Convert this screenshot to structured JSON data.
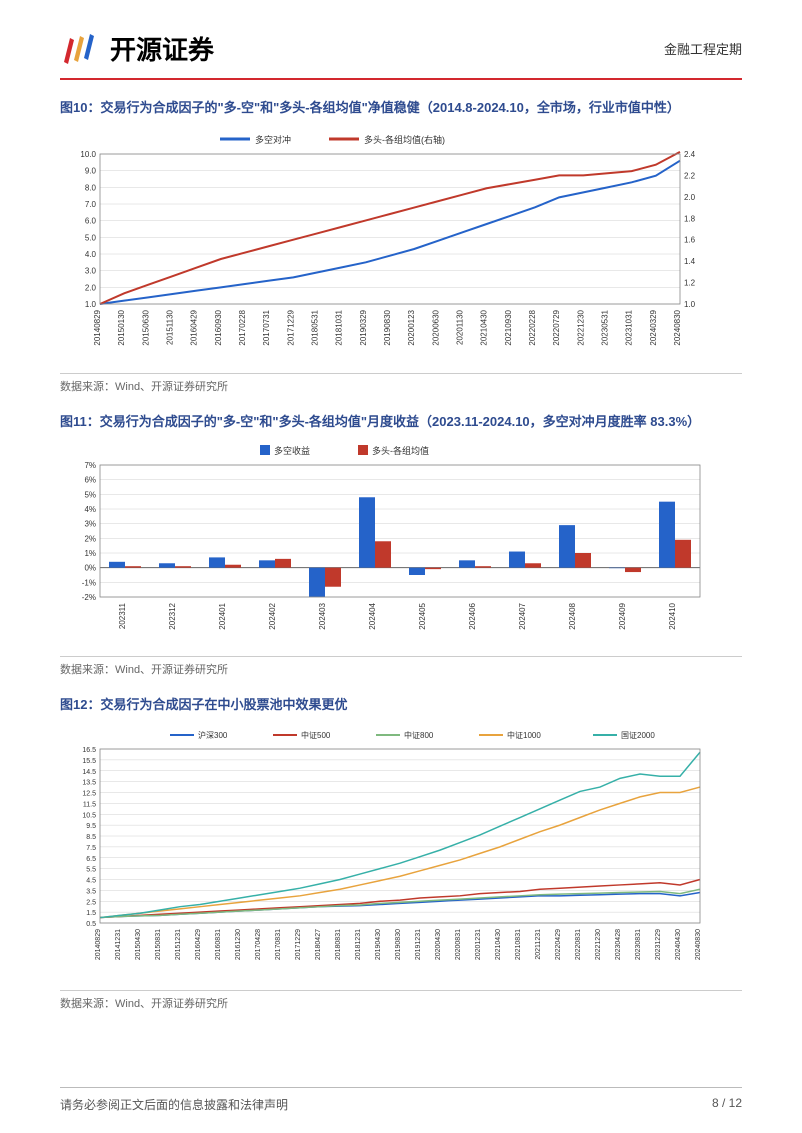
{
  "header": {
    "company": "开源证券",
    "category": "金融工程定期"
  },
  "figure10": {
    "title": "图10：交易行为合成因子的\"多-空\"和\"多头-各组均值\"净值稳健（2014.8-2024.10，全市场，行业市值中性）",
    "source": "数据来源：Wind、开源证券研究所",
    "type": "line",
    "x_labels": [
      "20140829",
      "20150130",
      "20150630",
      "20151130",
      "20160429",
      "20160930",
      "20170228",
      "20170731",
      "20171229",
      "20180531",
      "20181031",
      "20190329",
      "20190830",
      "20200123",
      "20200630",
      "20201130",
      "20210430",
      "20210930",
      "20220228",
      "20220729",
      "20221230",
      "20230531",
      "20231031",
      "20240329",
      "20240830"
    ],
    "y1_lim": [
      1.0,
      10.0
    ],
    "y1_step": 1.0,
    "y2_lim": [
      1.0,
      2.4
    ],
    "y2_step": 0.2,
    "series": [
      {
        "name": "多空对冲",
        "color": "#2563c9",
        "axis": "left",
        "values": [
          1.0,
          1.2,
          1.4,
          1.6,
          1.8,
          2.0,
          2.2,
          2.4,
          2.6,
          2.9,
          3.2,
          3.5,
          3.9,
          4.3,
          4.8,
          5.3,
          5.8,
          6.3,
          6.8,
          7.4,
          7.7,
          8.0,
          8.3,
          8.7,
          9.6
        ]
      },
      {
        "name": "多头-各组均值(右轴)",
        "color": "#c0392b",
        "axis": "right",
        "values": [
          1.0,
          1.1,
          1.18,
          1.26,
          1.34,
          1.42,
          1.48,
          1.54,
          1.6,
          1.66,
          1.72,
          1.78,
          1.84,
          1.9,
          1.96,
          2.02,
          2.08,
          2.12,
          2.16,
          2.2,
          2.2,
          2.22,
          2.24,
          2.3,
          2.42
        ]
      }
    ],
    "grid_color": "#d0d0d0",
    "background_color": "#ffffff",
    "label_fontsize": 9,
    "tick_fontsize": 8
  },
  "figure11": {
    "title": "图11：交易行为合成因子的\"多-空\"和\"多头-各组均值\"月度收益（2023.11-2024.10，多空对冲月度胜率 83.3%）",
    "source": "数据来源：Wind、开源证券研究所",
    "type": "bar",
    "x_labels": [
      "202311",
      "202312",
      "202401",
      "202402",
      "202403",
      "202404",
      "202405",
      "202406",
      "202407",
      "202408",
      "202409",
      "202410"
    ],
    "y_lim": [
      -2,
      7
    ],
    "y_step": 1,
    "y_format": "percent",
    "series": [
      {
        "name": "多空收益",
        "color": "#2563c9",
        "values": [
          0.4,
          0.3,
          0.7,
          0.5,
          -2.0,
          4.8,
          -0.5,
          0.5,
          1.1,
          2.9,
          0.0,
          4.5
        ]
      },
      {
        "name": "多头-各组均值",
        "color": "#c0392b",
        "values": [
          0.1,
          0.1,
          0.2,
          0.6,
          -1.3,
          1.8,
          -0.1,
          0.1,
          0.3,
          1.0,
          -0.3,
          1.9
        ]
      }
    ],
    "grid_color": "#d0d0d0",
    "background_color": "#ffffff",
    "label_fontsize": 9,
    "tick_fontsize": 8
  },
  "figure12": {
    "title": "图12：交易行为合成因子在中小股票池中效果更优",
    "source": "数据来源：Wind、开源证券研究所",
    "type": "line",
    "x_labels": [
      "20140829",
      "20141231",
      "20150430",
      "20150831",
      "20151231",
      "20160429",
      "20160831",
      "20161230",
      "20170428",
      "20170831",
      "20171229",
      "20180427",
      "20180831",
      "20181231",
      "20190430",
      "20190830",
      "20191231",
      "20200430",
      "20200831",
      "20201231",
      "20210430",
      "20210831",
      "20211231",
      "20220429",
      "20220831",
      "20221230",
      "20230428",
      "20230831",
      "20231229",
      "20240430",
      "20240830"
    ],
    "y_lim": [
      0.5,
      16.5
    ],
    "y_step": 1.0,
    "series": [
      {
        "name": "沪深300",
        "color": "#2563c9",
        "values": [
          1.0,
          1.1,
          1.15,
          1.2,
          1.3,
          1.4,
          1.5,
          1.6,
          1.7,
          1.8,
          1.9,
          2.0,
          2.05,
          2.1,
          2.2,
          2.3,
          2.4,
          2.5,
          2.6,
          2.7,
          2.8,
          2.9,
          3.0,
          3.0,
          3.05,
          3.1,
          3.15,
          3.2,
          3.2,
          3.0,
          3.3
        ]
      },
      {
        "name": "中证500",
        "color": "#c0392b",
        "values": [
          1.0,
          1.1,
          1.2,
          1.3,
          1.4,
          1.5,
          1.6,
          1.7,
          1.8,
          1.9,
          2.0,
          2.1,
          2.2,
          2.3,
          2.5,
          2.6,
          2.8,
          2.9,
          3.0,
          3.2,
          3.3,
          3.4,
          3.6,
          3.7,
          3.8,
          3.9,
          4.0,
          4.1,
          4.2,
          4.0,
          4.5
        ]
      },
      {
        "name": "中证800",
        "color": "#7fb97f",
        "values": [
          1.0,
          1.1,
          1.15,
          1.2,
          1.3,
          1.4,
          1.5,
          1.6,
          1.7,
          1.8,
          1.9,
          2.0,
          2.1,
          2.15,
          2.3,
          2.4,
          2.5,
          2.6,
          2.7,
          2.8,
          2.9,
          3.0,
          3.1,
          3.15,
          3.2,
          3.25,
          3.3,
          3.35,
          3.4,
          3.2,
          3.6
        ]
      },
      {
        "name": "中证1000",
        "color": "#e8a33d",
        "values": [
          1.0,
          1.2,
          1.4,
          1.6,
          1.8,
          2.0,
          2.2,
          2.4,
          2.6,
          2.8,
          3.0,
          3.3,
          3.6,
          4.0,
          4.4,
          4.8,
          5.3,
          5.8,
          6.3,
          6.9,
          7.5,
          8.2,
          8.9,
          9.5,
          10.2,
          10.9,
          11.5,
          12.1,
          12.5,
          12.5,
          13.0
        ]
      },
      {
        "name": "国证2000",
        "color": "#36b0a8",
        "values": [
          1.0,
          1.2,
          1.4,
          1.7,
          2.0,
          2.2,
          2.5,
          2.8,
          3.1,
          3.4,
          3.7,
          4.1,
          4.5,
          5.0,
          5.5,
          6.0,
          6.6,
          7.2,
          7.9,
          8.6,
          9.4,
          10.2,
          11.0,
          11.8,
          12.6,
          13.0,
          13.8,
          14.2,
          14.0,
          14.0,
          16.2
        ]
      }
    ],
    "grid_color": "#d0d0d0",
    "background_color": "#ffffff",
    "label_fontsize": 9,
    "tick_fontsize": 7
  },
  "footer": {
    "disclaimer": "请务必参阅正文后面的信息披露和法律声明",
    "page": "8 / 12"
  }
}
